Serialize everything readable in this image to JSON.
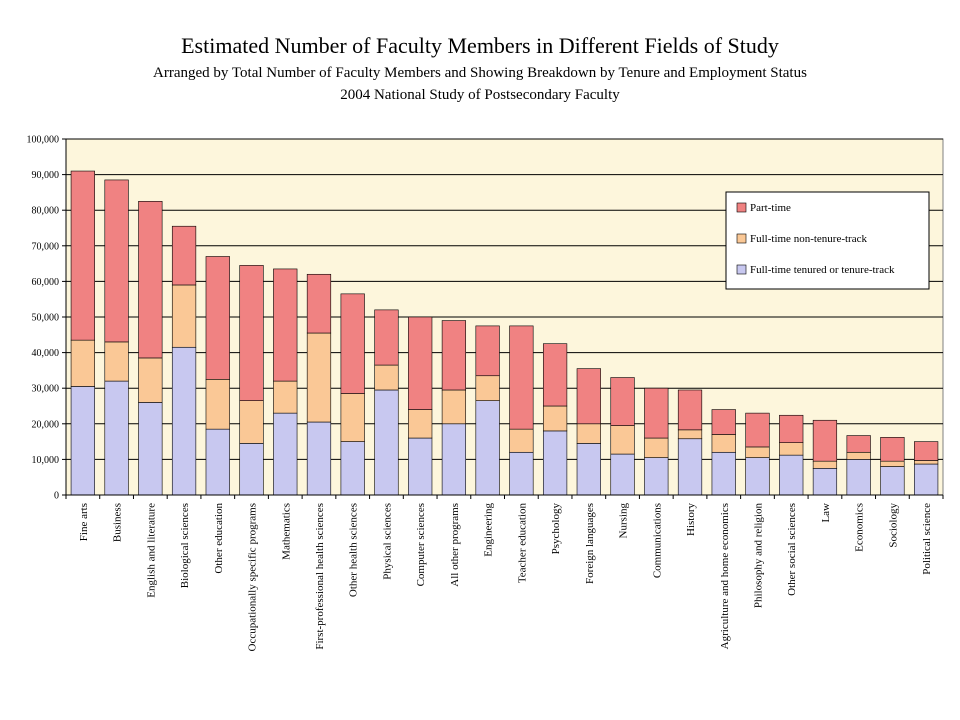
{
  "title": "Estimated Number of Faculty Members in Different Fields of Study",
  "subtitle": "Arranged by Total Number of Faculty Members and Showing Breakdown by Tenure and Employment Status",
  "subtitle2": "2004 National Study of Postsecondary Faculty",
  "chart_data": {
    "type": "bar",
    "stacked": true,
    "title": "Estimated Number of Faculty Members in Different Fields of Study",
    "subtitle": "Arranged by Total Number of Faculty Members and Showing Breakdown by Tenure and Employment Status",
    "xlabel": "",
    "ylabel": "",
    "ylim": [
      0,
      100000
    ],
    "yticks": [
      0,
      10000,
      20000,
      30000,
      40000,
      50000,
      60000,
      70000,
      80000,
      90000,
      100000
    ],
    "ytick_labels": [
      "0",
      "10,000",
      "20,000",
      "30,000",
      "40,000",
      "50,000",
      "60,000",
      "70,000",
      "80,000",
      "90,000",
      "100,000"
    ],
    "grid": true,
    "legend_position": "top-right",
    "categories": [
      "Fine arts",
      "Business",
      "English and literature",
      "Biological sciences",
      "Other education",
      "Occupationally specific programs",
      "Mathematics",
      "First-professional health sciences",
      "Other health sciences",
      "Physical sciences",
      "Computer sciences",
      "All other programs",
      "Engineering",
      "Teacher education",
      "Psychology",
      "Foreign languages",
      "Nursing",
      "Communications",
      "History",
      "Agriculture and home economics",
      "Philosophy and religion",
      "Other social sciences",
      "Law",
      "Economics",
      "Sociology",
      "Political science"
    ],
    "series": [
      {
        "name": "Full-time tenured or tenure-track",
        "color": "#c8c8f0",
        "values": [
          30500,
          32000,
          26000,
          41500,
          18500,
          14500,
          23000,
          20500,
          15000,
          29500,
          16000,
          20000,
          26500,
          12000,
          18000,
          14500,
          11500,
          10500,
          15800,
          12000,
          10500,
          11200,
          7500,
          10000,
          8000,
          8700
        ]
      },
      {
        "name": "Full-time non-tenure-track",
        "color": "#fac896",
        "values": [
          13000,
          11000,
          12500,
          17500,
          14000,
          12000,
          9000,
          25000,
          13500,
          7000,
          8000,
          9500,
          7000,
          6500,
          7000,
          5500,
          8000,
          5500,
          2500,
          5000,
          3000,
          3500,
          2000,
          2000,
          1500,
          1000
        ]
      },
      {
        "name": "Part-time",
        "color": "#f08282",
        "values": [
          47500,
          45500,
          44000,
          16500,
          34500,
          38000,
          31500,
          16500,
          28000,
          15500,
          26000,
          19500,
          14000,
          29000,
          17500,
          15500,
          13500,
          14000,
          11200,
          7000,
          9500,
          7700,
          11500,
          4700,
          6700,
          5300
        ]
      }
    ],
    "legend_order": [
      "Part-time",
      "Full-time non-tenure-track",
      "Full-time tenured or tenure-track"
    ],
    "plot_background": "#fdf6dc"
  }
}
